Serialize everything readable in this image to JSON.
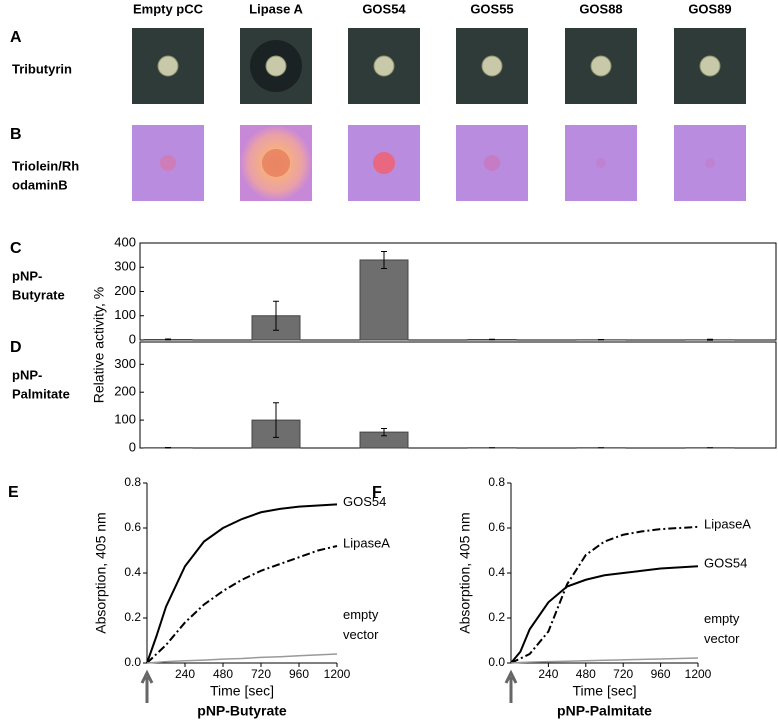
{
  "columns": [
    "Empty pCC",
    "Lipase A",
    "GOS54",
    "GOS55",
    "GOS88",
    "GOS89"
  ],
  "panels": [
    {
      "letter": "A",
      "label": [
        "Tributyrin"
      ]
    },
    {
      "letter": "B",
      "label": [
        "Triolein/Rh",
        "odaminB"
      ]
    }
  ],
  "chart_data": [
    {
      "type": "bar",
      "letter": "C",
      "label": [
        "pNP-",
        "Butyrate"
      ],
      "ylabel": "Relative activity, %",
      "categories": [
        "Empty pCC",
        "Lipase A",
        "GOS54",
        "GOS55",
        "GOS88",
        "GOS89"
      ],
      "values": [
        2,
        100,
        330,
        2,
        1,
        1
      ],
      "errors": [
        2,
        60,
        35,
        1,
        1,
        2
      ],
      "color": "#6e6e6e",
      "ylim": [
        0,
        400
      ],
      "yticks": [
        0,
        100,
        200,
        300,
        400
      ]
    },
    {
      "type": "bar",
      "letter": "D",
      "label": [
        "pNP-",
        "Palmitate"
      ],
      "categories": [
        null,
        null,
        null,
        null,
        null,
        null
      ],
      "values": [
        1,
        100,
        57,
        1,
        1,
        1
      ],
      "errors": [
        1,
        62,
        13,
        0,
        0,
        0
      ],
      "color": "#6e6e6e",
      "ylim": [
        0,
        380
      ],
      "yticks": [
        0,
        100,
        200,
        300
      ]
    },
    {
      "type": "line",
      "letter": "E",
      "title": "pNP-Butyrate",
      "xlabel": "Time [sec]",
      "ylabel": "Absorption, 405 nm",
      "x": [
        0,
        60,
        120,
        240,
        360,
        480,
        600,
        720,
        840,
        960,
        1080,
        1200
      ],
      "series": [
        {
          "name": "GOS54",
          "color": "#000000",
          "dash": "solid",
          "values": [
            0,
            0.12,
            0.25,
            0.43,
            0.54,
            0.6,
            0.64,
            0.67,
            0.685,
            0.695,
            0.7,
            0.705
          ]
        },
        {
          "name": "LipaseA",
          "color": "#000000",
          "dash": "dashdot",
          "values": [
            0,
            0.04,
            0.08,
            0.18,
            0.26,
            0.32,
            0.37,
            0.41,
            0.44,
            0.47,
            0.5,
            0.52
          ]
        },
        {
          "name": "empty vector",
          "color": "#999999",
          "dash": "solid",
          "values": [
            0,
            0.003,
            0.006,
            0.01,
            0.013,
            0.017,
            0.02,
            0.025,
            0.028,
            0.032,
            0.036,
            0.04
          ]
        }
      ],
      "xlim": [
        0,
        1200
      ],
      "xticks": [
        240,
        480,
        720,
        960,
        1200
      ],
      "ylim": [
        0,
        0.8
      ],
      "yticks": [
        {
          "value": 0,
          "label": "0.0"
        },
        0.2,
        0.4,
        0.6,
        0.8
      ]
    },
    {
      "type": "line",
      "letter": "F",
      "title": "pNP-Palmitate",
      "xlabel": "Time [sec]",
      "ylabel": "Absorption, 405 nm",
      "x": [
        0,
        60,
        120,
        240,
        360,
        480,
        600,
        720,
        840,
        960,
        1080,
        1200
      ],
      "series": [
        {
          "name": "LipaseA",
          "color": "#000000",
          "dash": "dashdot",
          "values": [
            0,
            0.02,
            0.04,
            0.14,
            0.35,
            0.48,
            0.54,
            0.57,
            0.585,
            0.595,
            0.6,
            0.605
          ]
        },
        {
          "name": "GOS54",
          "color": "#000000",
          "dash": "solid",
          "values": [
            0,
            0.05,
            0.15,
            0.27,
            0.34,
            0.37,
            0.39,
            0.4,
            0.41,
            0.42,
            0.425,
            0.43
          ]
        },
        {
          "name": "empty vector",
          "color": "#999999",
          "dash": "solid",
          "values": [
            0,
            0.002,
            0.004,
            0.006,
            0.008,
            0.01,
            0.012,
            0.014,
            0.016,
            0.018,
            0.02,
            0.022
          ]
        }
      ],
      "xlim": [
        0,
        1200
      ],
      "xticks": [
        240,
        480,
        720,
        960,
        1200
      ],
      "ylim": [
        0,
        0.8
      ],
      "yticks": [
        {
          "value": 0,
          "label": "0.0"
        },
        0.2,
        0.4,
        0.6,
        0.8
      ]
    }
  ]
}
